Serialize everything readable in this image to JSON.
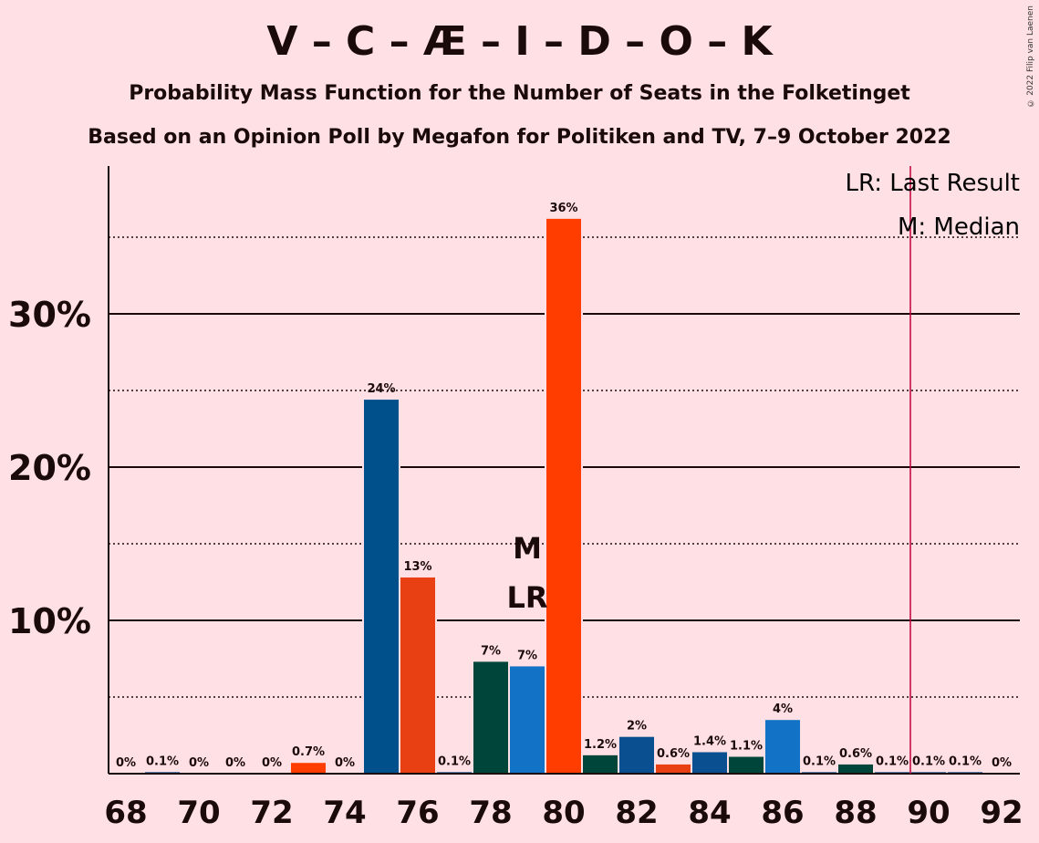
{
  "title": "V – C – Æ – I – D – O – K",
  "subtitle1": "Probability Mass Function for the Number of Seats in the Folketinget",
  "subtitle2": "Based on an Opinion Poll by Megafon for Politiken and TV, 7–9 October 2022",
  "copyright": "© 2022 Filip van Laenen",
  "legend": {
    "lr": "LR: Last Result",
    "m": "M: Median"
  },
  "markers": {
    "median_label": "M",
    "last_result_label": "LR",
    "median_seats": 79,
    "last_result_seats": 79,
    "majority_line_seats": 89.5
  },
  "colors": {
    "background": "#FFE0E4",
    "majority_line": "#C0003A"
  },
  "chart_data": {
    "type": "bar",
    "xlabel": "",
    "ylabel": "",
    "ylim": [
      0,
      39
    ],
    "y_ticks": [
      {
        "value": 10,
        "label": "10%"
      },
      {
        "value": 20,
        "label": "20%"
      },
      {
        "value": 30,
        "label": "30%"
      }
    ],
    "y_dotted": [
      5,
      15,
      25,
      35
    ],
    "x_ticks": [
      68,
      70,
      72,
      74,
      76,
      78,
      80,
      82,
      84,
      86,
      88,
      90,
      92
    ],
    "bars": [
      {
        "seats": 68,
        "value": 0,
        "label": "0%",
        "color": "#0A5090"
      },
      {
        "seats": 69,
        "value": 0.1,
        "label": "0.1%",
        "color": "#0A5090"
      },
      {
        "seats": 70,
        "value": 0,
        "label": "0%",
        "color": "#0A5090"
      },
      {
        "seats": 71,
        "value": 0,
        "label": "0%",
        "color": "#0A5090"
      },
      {
        "seats": 72,
        "value": 0,
        "label": "0%",
        "color": "#0A5090"
      },
      {
        "seats": 73,
        "value": 0.7,
        "label": "0.7%",
        "color": "#FF3D00"
      },
      {
        "seats": 74,
        "value": 0,
        "label": "0%",
        "color": "#0A5090"
      },
      {
        "seats": 75,
        "value": 24.4,
        "label": "24%",
        "color": "#00508C"
      },
      {
        "seats": 76,
        "value": 12.8,
        "label": "13%",
        "color": "#E84012"
      },
      {
        "seats": 77,
        "value": 0.1,
        "label": "0.1%",
        "color": "#0A5090"
      },
      {
        "seats": 78,
        "value": 7.3,
        "label": "7%",
        "color": "#00453A"
      },
      {
        "seats": 79,
        "value": 7.0,
        "label": "7%",
        "color": "#1273C6"
      },
      {
        "seats": 80,
        "value": 36.2,
        "label": "36%",
        "color": "#FF3D00"
      },
      {
        "seats": 81,
        "value": 1.2,
        "label": "1.2%",
        "color": "#00453A"
      },
      {
        "seats": 82,
        "value": 2.4,
        "label": "2%",
        "color": "#0A5090"
      },
      {
        "seats": 83,
        "value": 0.6,
        "label": "0.6%",
        "color": "#E84012"
      },
      {
        "seats": 84,
        "value": 1.4,
        "label": "1.4%",
        "color": "#0A5090"
      },
      {
        "seats": 85,
        "value": 1.1,
        "label": "1.1%",
        "color": "#00453A"
      },
      {
        "seats": 86,
        "value": 3.5,
        "label": "4%",
        "color": "#1273C6"
      },
      {
        "seats": 87,
        "value": 0.1,
        "label": "0.1%",
        "color": "#0A5090"
      },
      {
        "seats": 88,
        "value": 0.6,
        "label": "0.6%",
        "color": "#00453A"
      },
      {
        "seats": 89,
        "value": 0.1,
        "label": "0.1%",
        "color": "#0A5090"
      },
      {
        "seats": 90,
        "value": 0.1,
        "label": "0.1%",
        "color": "#0A5090"
      },
      {
        "seats": 91,
        "value": 0.1,
        "label": "0.1%",
        "color": "#0A5090"
      },
      {
        "seats": 92,
        "value": 0,
        "label": "0%",
        "color": "#0A5090"
      }
    ]
  }
}
